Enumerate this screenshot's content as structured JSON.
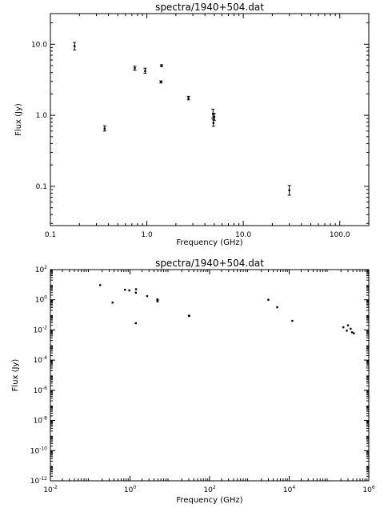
{
  "chart_data": [
    {
      "type": "scatter",
      "title": "spectra/1940+504.dat",
      "xlabel": "Frequency (GHz)",
      "ylabel": "Flux (Jy)",
      "xscale": "log",
      "yscale": "log",
      "xlim": [
        0.1,
        200
      ],
      "ylim": [
        0.028,
        27
      ],
      "x_ticks": [
        0.1,
        1,
        10,
        100
      ],
      "x_tick_labels": [
        "0.1",
        "1.0",
        "10.0",
        "100.0"
      ],
      "y_ticks": [
        0.1,
        1,
        10
      ],
      "y_tick_labels": [
        "0.1",
        "1.0",
        "10.0"
      ],
      "grid": false,
      "points": [
        {
          "x": 0.178,
          "y": 9.4,
          "ylo": 8.3,
          "yhi": 10.6
        },
        {
          "x": 0.365,
          "y": 0.65,
          "ylo": 0.6,
          "yhi": 0.71
        },
        {
          "x": 0.75,
          "y": 4.6,
          "ylo": 4.3,
          "yhi": 4.9
        },
        {
          "x": 0.96,
          "y": 4.2,
          "ylo": 3.9,
          "yhi": 4.6
        },
        {
          "x": 1.4,
          "y": 2.95,
          "ylo": 2.85,
          "yhi": 3.05
        },
        {
          "x": 1.42,
          "y": 5.0,
          "ylo": 4.85,
          "yhi": 5.15
        },
        {
          "x": 2.7,
          "y": 1.75,
          "ylo": 1.65,
          "yhi": 1.85
        },
        {
          "x": 4.85,
          "y": 1.05,
          "ylo": 0.92,
          "yhi": 1.22
        },
        {
          "x": 4.9,
          "y": 0.78,
          "ylo": 0.7,
          "yhi": 0.88
        },
        {
          "x": 5.0,
          "y": 0.95,
          "ylo": 0.85,
          "yhi": 1.06
        },
        {
          "x": 30.0,
          "y": 0.088,
          "ylo": 0.075,
          "yhi": 0.103
        }
      ]
    },
    {
      "type": "scatter",
      "title": "spectra/1940+504.dat",
      "xlabel": "Frequency (GHz)",
      "ylabel": "Flux (Jy)",
      "xscale": "log",
      "yscale": "log",
      "xlim": [
        0.01,
        1000000
      ],
      "ylim": [
        1e-12,
        100
      ],
      "x_ticks": [
        0.01,
        1,
        100,
        10000,
        1000000
      ],
      "x_tick_labels": [
        {
          "base": "10",
          "exp": "-2"
        },
        {
          "base": "10",
          "exp": "0"
        },
        {
          "base": "10",
          "exp": "2"
        },
        {
          "base": "10",
          "exp": "4"
        },
        {
          "base": "10",
          "exp": "6"
        }
      ],
      "y_ticks": [
        1e-12,
        1e-10,
        1e-08,
        1e-06,
        0.0001,
        0.01,
        1,
        100
      ],
      "y_tick_labels": [
        {
          "base": "10",
          "exp": "-12"
        },
        {
          "base": "10",
          "exp": "-10"
        },
        {
          "base": "10",
          "exp": "-8"
        },
        {
          "base": "10",
          "exp": "-6"
        },
        {
          "base": "10",
          "exp": "-4"
        },
        {
          "base": "10",
          "exp": "-2"
        },
        {
          "base": "10",
          "exp": "0"
        },
        {
          "base": "10",
          "exp": "2"
        }
      ],
      "grid": false,
      "points": [
        {
          "x": 0.178,
          "y": 9.4
        },
        {
          "x": 0.365,
          "y": 0.65
        },
        {
          "x": 0.75,
          "y": 4.6
        },
        {
          "x": 0.96,
          "y": 4.2
        },
        {
          "x": 1.4,
          "y": 2.95
        },
        {
          "x": 1.42,
          "y": 5.0
        },
        {
          "x": 1.4,
          "y": 0.028
        },
        {
          "x": 2.7,
          "y": 1.75
        },
        {
          "x": 4.85,
          "y": 1.05
        },
        {
          "x": 4.9,
          "y": 0.78
        },
        {
          "x": 5.0,
          "y": 0.95
        },
        {
          "x": 30.0,
          "y": 0.088
        },
        {
          "x": 31.0,
          "y": 0.085
        },
        {
          "x": 3000,
          "y": 1.0
        },
        {
          "x": 5000,
          "y": 0.32
        },
        {
          "x": 12000,
          "y": 0.04
        },
        {
          "x": 230000,
          "y": 0.015
        },
        {
          "x": 280000,
          "y": 0.009
        },
        {
          "x": 300000,
          "y": 0.02
        },
        {
          "x": 350000,
          "y": 0.012
        },
        {
          "x": 380000,
          "y": 0.007
        },
        {
          "x": 420000,
          "y": 0.006
        }
      ]
    }
  ]
}
